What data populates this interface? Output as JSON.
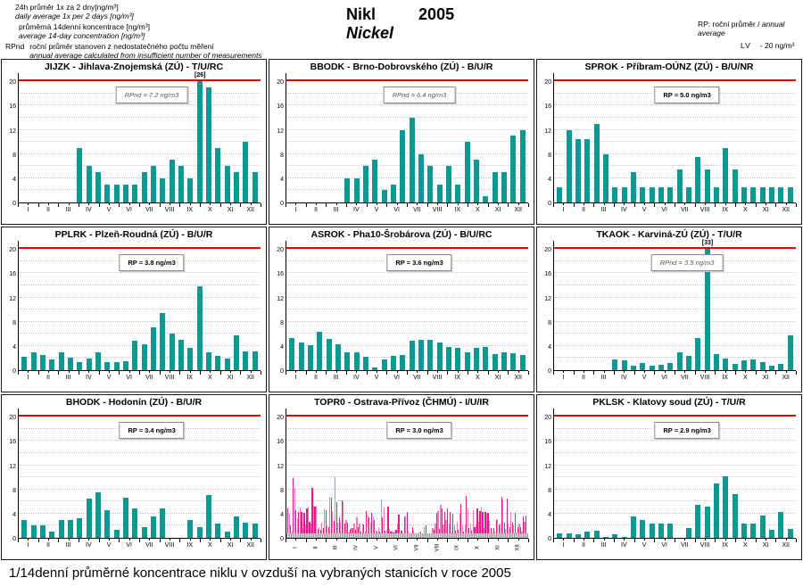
{
  "header": {
    "legend": {
      "daily": {
        "label_cs": "24h průměr 1x za 2 dny[ng/m³]",
        "label_en": "daily average 1x per 2 days [ng/m³]",
        "color": "#e61892"
      },
      "biweekly": {
        "label_cs": "průměrná 14denní koncentrace [ng/m³]",
        "label_en": "average 14-day concentration [ng/m³]",
        "color": "#0a9a93"
      },
      "rpnd_prefix": "RPnd",
      "rpnd_note_cs": "roční průměr stanoven z nedostatečného počtu měření",
      "rpnd_note_en": "annual average calculated from insufficient number of measurements"
    },
    "title_cs": "Nikl",
    "title_en": "Nickel",
    "year": "2005",
    "rp_note_cs": "RP: roční průměr / ",
    "rp_note_en": "annual average",
    "lv_label": "LV",
    "lv_value": "- 20 ng/m³",
    "lv_color": "#e60000"
  },
  "caption": "1/14denní průměrné koncentrace niklu v ovzduší na vybraných stanicích v roce 2005",
  "chart_data": {
    "type": "bar",
    "months": [
      "I",
      "II",
      "III",
      "IV",
      "V",
      "VI",
      "VII",
      "VIII",
      "IX",
      "X",
      "XI",
      "XII"
    ],
    "ylim": [
      0,
      20
    ],
    "yticks": [
      0,
      4,
      8,
      12,
      16,
      20
    ],
    "limit_line": 20,
    "bar_color_14day": "#0a9a93",
    "bar_color_daily": "#e61892",
    "bar_color_daily_light": "#f57ab8",
    "charts": [
      {
        "id": "JIJZK",
        "title": "JIJZK - Jihlava-Znojemská (ZÚ) - T/U/RC",
        "annotation": "RPnd = 7.2 ng/m3",
        "annotation_style": "rpnd",
        "series": "14day",
        "values": [
          0,
          0,
          0,
          0,
          0,
          0,
          9,
          6,
          5,
          3,
          3,
          3,
          3,
          5,
          6,
          4,
          7,
          6,
          4,
          26,
          19,
          9,
          6,
          5,
          10,
          5
        ],
        "peak_label": "[26]",
        "peak_index": 19
      },
      {
        "id": "BBODK",
        "title": "BBODK - Brno-Dobrovského (ZÚ) - B/U/R",
        "annotation": "RPnd = 6.4 ng/m3",
        "annotation_style": "rpnd",
        "series": "14day",
        "values": [
          0,
          0,
          0,
          0,
          0,
          0,
          4,
          4,
          6,
          7,
          2,
          3,
          12,
          14,
          8,
          6,
          3,
          6,
          3,
          10,
          7,
          1,
          5,
          5,
          11,
          12
        ]
      },
      {
        "id": "SPROK",
        "title": "SPROK - Příbram-OÚNZ (ZÚ) - B/U/NR",
        "annotation": "RP = 5.0 ng/m3",
        "annotation_style": "rp",
        "series": "14day",
        "values": [
          2.5,
          12,
          10.5,
          10.5,
          13,
          8,
          2.5,
          2.5,
          5,
          2.5,
          2.5,
          2.5,
          2.5,
          5.5,
          2.5,
          7.5,
          5.5,
          2.5,
          9,
          5.5,
          2.5,
          2.5,
          2.5,
          2.5,
          2.5,
          2.5
        ]
      },
      {
        "id": "PPLRK",
        "title": "PPLRK - Plzeň-Roudná (ZÚ) - B/U/R",
        "annotation": "RP = 3.8 ng/m3",
        "annotation_style": "rp",
        "series": "14day",
        "values": [
          2.2,
          3,
          2.5,
          1.8,
          2.9,
          2,
          1.4,
          1.9,
          3,
          1.3,
          1.4,
          1.5,
          4.8,
          4.2,
          7,
          9.4,
          6,
          5,
          3.7,
          13.8,
          2.9,
          2.4,
          1.9,
          5.7,
          3.1,
          3.1
        ]
      },
      {
        "id": "ASROK",
        "title": "ASROK - Pha10-Šrobárova (ZÚ) - B/U/RC",
        "annotation": "RP = 3.6 ng/m3",
        "annotation_style": "rp",
        "series": "14day",
        "values": [
          5.3,
          4.6,
          4.1,
          6.4,
          5.1,
          4.3,
          3,
          3,
          2.2,
          0.5,
          1.7,
          2.4,
          2.5,
          4.8,
          5,
          5,
          4.5,
          3.8,
          3.7,
          3,
          3.7,
          3.8,
          2.6,
          2.9,
          2.8,
          2.5
        ]
      },
      {
        "id": "TKAOK",
        "title": "TKAOK - Karviná-ZÚ (ZÚ) - T/U/R",
        "annotation": "RPnd = 3.5 ng/m3",
        "annotation_style": "rpnd",
        "series": "14day",
        "values": [
          0,
          0,
          0,
          0,
          0,
          0,
          1.8,
          1.6,
          0.7,
          1.2,
          0.8,
          0.9,
          1.2,
          3,
          2.3,
          5.3,
          33,
          2.6,
          1.9,
          1,
          1.6,
          1.8,
          1.3,
          0.7,
          1.1,
          5.7
        ],
        "peak_label": "[33]",
        "peak_index": 16
      },
      {
        "id": "BHODK",
        "title": "BHODK - Hodonín (ZÚ) - B/U/R",
        "annotation": "RP = 3.4 ng/m3",
        "annotation_style": "rp",
        "series": "14day",
        "values": [
          3,
          2,
          2,
          1,
          3,
          3,
          3.2,
          6.5,
          7.5,
          4.6,
          1.4,
          6.7,
          4.8,
          1.7,
          3.6,
          4.8,
          0,
          0,
          3,
          1.7,
          7,
          2.3,
          1,
          3.6,
          2.5,
          2.3
        ]
      },
      {
        "id": "TOPR0",
        "title": "TOPR0 - Ostrava-Přívoz (ČHMÚ) - I/U/IR",
        "annotation": "RP = 3.0 ng/m3",
        "annotation_style": "rp",
        "series": "daily",
        "rotated_xlabels": true,
        "values": [
          4.8,
          4.0,
          2.1,
          1.0,
          9.9,
          8.2,
          4.6,
          3.2,
          4.3,
          5.0,
          4.2,
          1.6,
          4.1,
          2.2,
          4.9,
          5.2,
          2.6,
          2.4,
          8.2,
          5.3,
          5.2,
          5.3,
          1.5,
          1.8,
          1.3,
          2.5,
          1.6,
          4.7,
          4.6,
          2.0,
          1.8,
          6.8,
          6.7,
          4.4,
          2.8,
          10.0,
          5.9,
          2.5,
          3.4,
          2.6,
          6.2,
          6.0,
          2.4,
          2.9,
          2.5,
          0.9,
          1.5,
          1.6,
          1.6,
          2.4,
          1.4,
          3.4,
          1.7,
          2.3,
          1.0,
          2.4,
          2.2,
          1.0,
          4.4,
          3.8,
          3.4,
          2.5,
          4.1,
          3.6,
          3.0,
          1.4,
          1.0,
          1.7,
          1.0,
          6.4,
          3.4,
          5.0,
          1.2,
          1.2,
          5.1,
          1.5,
          1.0,
          1.2,
          0.9,
          1.2,
          1.3,
          2.4,
          3.9,
          0.6,
          1.2,
          0.7,
          3.5,
          3.6,
          4.3,
          1.0,
          0.7,
          0.9,
          1.7,
          1.2,
          0.6,
          0.8,
          0.5,
          0.9,
          1.1,
          0.5,
          0.7,
          1.7,
          2.0,
          0.4,
          0.5,
          0.3,
          0.6,
          1.6,
          1.3,
          2.3,
          4.1,
          4.4,
          1.5,
          5.5,
          4.8,
          2.2,
          4.3,
          3.0,
          4.8,
          2.4,
          4.3,
          1.1,
          4.0,
          2.0,
          1.2,
          2.7,
          1.3,
          4.1,
          5.6,
          2.1,
          1.1,
          2.0,
          6.9,
          4.9,
          1.6,
          2.3,
          1.2,
          4.6,
          1.8,
          2.2,
          4.8,
          2.7,
          4.4,
          5.1,
          4.2,
          1.6,
          4.3,
          4.0,
          4.1,
          2.8,
          1.6,
          0.9,
          1.6,
          1.1,
          2.9,
          3.1,
          2.1,
          2.4,
          6.8,
          6.3,
          2.5,
          1.5,
          6.5,
          2.3,
          1.8,
          4.2,
          2.5,
          2.0,
          4.1,
          0.9,
          1.7,
          2.4,
          1.8,
          1.0,
          3.6,
          2.7,
          3.7
        ]
      },
      {
        "id": "PKLSK",
        "title": "PKLSK - Klatovy soud (ZÚ) - T/U/R",
        "annotation": "RP = 2.9 ng/m3",
        "annotation_style": "rp",
        "series": "14day",
        "values": [
          0.7,
          0.7,
          0.6,
          1.1,
          1.2,
          0.2,
          0.6,
          0.2,
          3.5,
          3,
          2.3,
          2.4,
          2.4,
          0,
          1.6,
          5.4,
          5.1,
          9,
          10.2,
          7.2,
          2.3,
          2.3,
          3.7,
          1.3,
          4.2,
          1.5
        ]
      }
    ]
  }
}
